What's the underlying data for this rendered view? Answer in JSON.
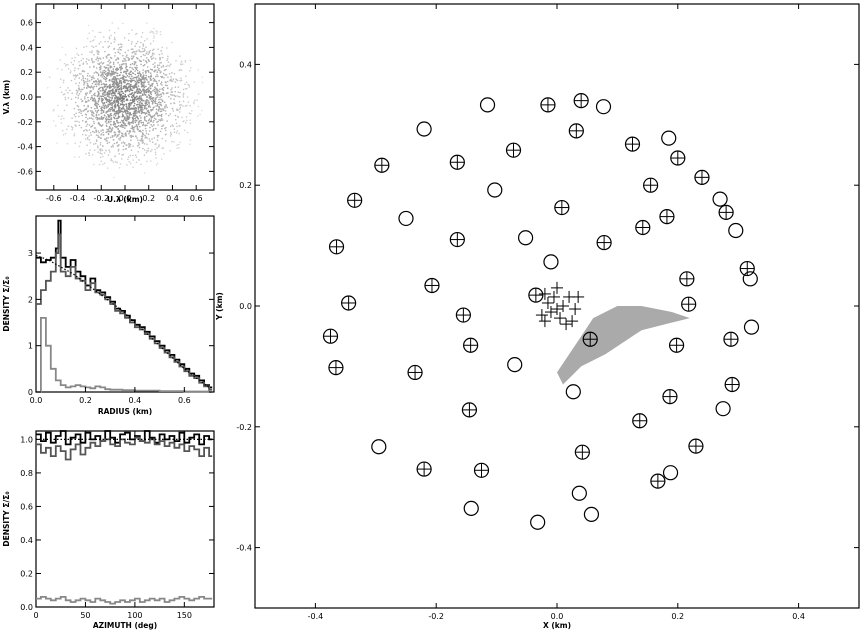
{
  "chart_data": [
    {
      "id": "uv",
      "type": "scatter",
      "xlabel": "U.λ (km)",
      "ylabel": "V.λ (km)",
      "xlim": [
        -0.75,
        0.75
      ],
      "ylim": [
        -0.75,
        0.75
      ],
      "xticks": [
        -0.6,
        -0.4,
        -0.2,
        0.0,
        0.2,
        0.4,
        0.6
      ],
      "yticks": [
        -0.6,
        -0.4,
        -0.2,
        0.0,
        0.2,
        0.4,
        0.6
      ],
      "max_radius": 0.7,
      "colors": {
        "points": "#9a9a9a"
      }
    },
    {
      "id": "radial",
      "type": "line",
      "xlabel": "RADIUS (km)",
      "ylabel": "DENSITY  Σ/Σ₀",
      "xlim": [
        0.0,
        0.72
      ],
      "ylim": [
        0.0,
        3.8
      ],
      "xticks": [
        0.0,
        0.2,
        0.4,
        0.6
      ],
      "yticks": [
        0,
        1,
        2,
        3
      ],
      "series": [
        {
          "style": "step",
          "color": "#000000",
          "x": [
            0.0,
            0.02,
            0.04,
            0.06,
            0.08,
            0.09,
            0.1,
            0.12,
            0.14,
            0.16,
            0.18,
            0.2,
            0.22,
            0.24,
            0.26,
            0.28,
            0.3,
            0.32,
            0.34,
            0.36,
            0.38,
            0.4,
            0.42,
            0.44,
            0.46,
            0.48,
            0.5,
            0.52,
            0.54,
            0.56,
            0.58,
            0.6,
            0.62,
            0.64,
            0.66,
            0.68,
            0.7
          ],
          "y": [
            2.9,
            2.8,
            2.85,
            2.9,
            3.1,
            3.7,
            2.9,
            2.7,
            2.85,
            2.6,
            2.5,
            2.3,
            2.45,
            2.2,
            2.15,
            2.05,
            1.95,
            1.8,
            1.75,
            1.65,
            1.55,
            1.45,
            1.4,
            1.3,
            1.2,
            1.1,
            1.0,
            0.9,
            0.8,
            0.7,
            0.6,
            0.5,
            0.4,
            0.35,
            0.25,
            0.15,
            0.1
          ]
        },
        {
          "style": "step",
          "color": "#555555",
          "x": [
            0.0,
            0.02,
            0.04,
            0.06,
            0.08,
            0.09,
            0.1,
            0.12,
            0.14,
            0.16,
            0.18,
            0.2,
            0.22,
            0.24,
            0.26,
            0.28,
            0.3,
            0.32,
            0.34,
            0.36,
            0.38,
            0.4,
            0.42,
            0.44,
            0.46,
            0.48,
            0.5,
            0.52,
            0.54,
            0.56,
            0.58,
            0.6,
            0.62,
            0.64,
            0.66,
            0.68,
            0.7
          ],
          "y": [
            1.9,
            2.2,
            2.4,
            2.6,
            3.0,
            3.4,
            2.6,
            2.5,
            2.7,
            2.45,
            2.4,
            2.2,
            2.35,
            2.15,
            2.1,
            2.0,
            1.9,
            1.75,
            1.7,
            1.6,
            1.5,
            1.4,
            1.35,
            1.25,
            1.15,
            1.05,
            0.95,
            0.85,
            0.75,
            0.65,
            0.55,
            0.45,
            0.35,
            0.3,
            0.2,
            0.12,
            0.05
          ]
        },
        {
          "style": "step",
          "color": "#888888",
          "x": [
            0.0,
            0.02,
            0.04,
            0.06,
            0.08,
            0.1,
            0.12,
            0.14,
            0.16,
            0.18,
            0.2,
            0.22,
            0.24,
            0.26,
            0.28,
            0.3,
            0.35,
            0.4,
            0.45,
            0.5,
            0.55,
            0.6,
            0.65,
            0.7
          ],
          "y": [
            0.0,
            1.6,
            1.0,
            0.5,
            0.25,
            0.15,
            0.1,
            0.12,
            0.15,
            0.12,
            0.1,
            0.08,
            0.12,
            0.1,
            0.06,
            0.05,
            0.04,
            0.03,
            0.03,
            0.02,
            0.02,
            0.01,
            0.01,
            0.0
          ]
        },
        {
          "style": "dotted",
          "color": "#000000",
          "x": [
            0.0,
            0.05,
            0.1,
            0.15,
            0.2,
            0.25,
            0.3,
            0.35,
            0.4,
            0.45,
            0.5,
            0.55,
            0.6,
            0.65,
            0.7
          ],
          "y": [
            2.95,
            2.85,
            2.7,
            2.55,
            2.35,
            2.15,
            1.95,
            1.75,
            1.5,
            1.25,
            1.0,
            0.75,
            0.5,
            0.3,
            0.1
          ]
        }
      ]
    },
    {
      "id": "azimuth",
      "type": "line",
      "xlabel": "AZIMUTH (deg)",
      "ylabel": "DENSITY  Σ/Σ₀",
      "xlim": [
        0,
        180
      ],
      "ylim": [
        0.0,
        1.05
      ],
      "xticks": [
        0,
        50,
        100,
        150
      ],
      "yticks": [
        0.0,
        0.2,
        0.4,
        0.6,
        0.8,
        1.0
      ],
      "series": [
        {
          "style": "step",
          "color": "#000000",
          "x": [
            0,
            5,
            10,
            15,
            20,
            25,
            30,
            35,
            40,
            45,
            50,
            55,
            60,
            65,
            70,
            75,
            80,
            85,
            90,
            95,
            100,
            105,
            110,
            115,
            120,
            125,
            130,
            135,
            140,
            145,
            150,
            155,
            160,
            165,
            170,
            175
          ],
          "y": [
            1.03,
            0.99,
            1.04,
            0.98,
            1.02,
            1.05,
            0.97,
            1.01,
            1.03,
            0.98,
            1.04,
            1.0,
            1.02,
            0.99,
            1.05,
            1.01,
            0.98,
            1.03,
            1.04,
            1.0,
            1.02,
            0.99,
            1.05,
            1.01,
            0.98,
            1.03,
            1.0,
            1.02,
            0.99,
            1.04,
            0.98,
            1.01,
            1.03,
            0.97,
            1.02,
            1.0
          ]
        },
        {
          "style": "step",
          "color": "#555555",
          "x": [
            0,
            5,
            10,
            15,
            20,
            25,
            30,
            35,
            40,
            45,
            50,
            55,
            60,
            65,
            70,
            75,
            80,
            85,
            90,
            95,
            100,
            105,
            110,
            115,
            120,
            125,
            130,
            135,
            140,
            145,
            150,
            155,
            160,
            165,
            170,
            175
          ],
          "y": [
            0.97,
            0.92,
            0.95,
            0.9,
            0.96,
            0.93,
            0.88,
            0.94,
            0.97,
            0.91,
            0.95,
            0.98,
            0.96,
            0.99,
            1.0,
            0.97,
            0.96,
            1.0,
            0.98,
            0.97,
            1.01,
            0.99,
            0.98,
            1.0,
            0.97,
            0.99,
            0.96,
            0.98,
            0.95,
            0.97,
            0.93,
            0.96,
            0.94,
            0.9,
            0.95,
            0.9
          ]
        },
        {
          "style": "step",
          "color": "#888888",
          "x": [
            0,
            5,
            10,
            15,
            20,
            25,
            30,
            35,
            40,
            45,
            50,
            55,
            60,
            65,
            70,
            75,
            80,
            85,
            90,
            95,
            100,
            105,
            110,
            115,
            120,
            125,
            130,
            135,
            140,
            145,
            150,
            155,
            160,
            165,
            170,
            175
          ],
          "y": [
            0.05,
            0.06,
            0.05,
            0.04,
            0.05,
            0.06,
            0.04,
            0.03,
            0.04,
            0.05,
            0.04,
            0.03,
            0.05,
            0.04,
            0.03,
            0.02,
            0.03,
            0.04,
            0.03,
            0.04,
            0.05,
            0.03,
            0.04,
            0.05,
            0.04,
            0.05,
            0.03,
            0.04,
            0.05,
            0.06,
            0.05,
            0.04,
            0.05,
            0.06,
            0.05,
            0.05
          ]
        },
        {
          "style": "dotted",
          "color": "#000000",
          "x": [
            0,
            180
          ],
          "y": [
            1.0,
            1.0
          ]
        }
      ]
    },
    {
      "id": "layout",
      "type": "scatter",
      "xlabel": "X (km)",
      "ylabel": "Y (km)",
      "xlim": [
        -0.5,
        0.5
      ],
      "ylim": [
        -0.5,
        0.5
      ],
      "xticks": [
        -0.4,
        -0.2,
        0.0,
        0.2,
        0.4
      ],
      "yticks": [
        -0.4,
        -0.2,
        0.0,
        0.2,
        0.4
      ],
      "antennas_circle": [
        [
          -0.115,
          0.333
        ],
        [
          -0.22,
          0.293
        ],
        [
          -0.103,
          0.192
        ],
        [
          -0.25,
          0.145
        ],
        [
          -0.052,
          0.113
        ],
        [
          -0.01,
          0.073
        ],
        [
          0.077,
          0.33
        ],
        [
          0.185,
          0.278
        ],
        [
          0.27,
          0.177
        ],
        [
          0.296,
          0.125
        ],
        [
          0.32,
          0.045
        ],
        [
          0.322,
          -0.035
        ],
        [
          0.275,
          -0.17
        ],
        [
          0.188,
          -0.276
        ],
        [
          0.057,
          -0.345
        ],
        [
          -0.032,
          -0.358
        ],
        [
          -0.142,
          -0.335
        ],
        [
          -0.295,
          -0.233
        ],
        [
          0.037,
          -0.31
        ],
        [
          0.027,
          -0.142
        ],
        [
          -0.07,
          -0.097
        ]
      ],
      "antennas_plus": [
        [
          -0.015,
          0.333
        ],
        [
          0.04,
          0.34
        ],
        [
          0.032,
          0.29
        ],
        [
          0.125,
          0.268
        ],
        [
          0.2,
          0.245
        ],
        [
          0.24,
          0.213
        ],
        [
          0.155,
          0.2
        ],
        [
          0.182,
          0.148
        ],
        [
          0.28,
          0.155
        ],
        [
          0.142,
          0.13
        ],
        [
          0.008,
          0.163
        ],
        [
          0.078,
          0.105
        ],
        [
          0.215,
          0.045
        ],
        [
          0.315,
          0.062
        ],
        [
          0.218,
          0.003
        ],
        [
          0.198,
          -0.065
        ],
        [
          0.288,
          -0.055
        ],
        [
          0.055,
          -0.055
        ],
        [
          -0.165,
          0.238
        ],
        [
          -0.072,
          0.258
        ],
        [
          -0.29,
          0.233
        ],
        [
          -0.335,
          0.175
        ],
        [
          -0.365,
          0.098
        ],
        [
          -0.165,
          0.11
        ],
        [
          -0.345,
          0.005
        ],
        [
          -0.207,
          0.034
        ],
        [
          -0.155,
          -0.015
        ],
        [
          -0.035,
          0.018
        ],
        [
          -0.375,
          -0.05
        ],
        [
          -0.366,
          -0.102
        ],
        [
          -0.235,
          -0.11
        ],
        [
          -0.143,
          -0.065
        ],
        [
          -0.145,
          -0.172
        ],
        [
          0.29,
          -0.13
        ],
        [
          0.187,
          -0.15
        ],
        [
          0.137,
          -0.19
        ],
        [
          0.23,
          -0.232
        ],
        [
          0.167,
          -0.29
        ],
        [
          -0.22,
          -0.27
        ],
        [
          -0.125,
          -0.272
        ],
        [
          0.042,
          -0.242
        ]
      ],
      "crosses": [
        [
          -0.02,
          0.02
        ],
        [
          0.0,
          0.03
        ],
        [
          0.01,
          0.0
        ],
        [
          -0.01,
          -0.01
        ],
        [
          0.02,
          0.015
        ],
        [
          0.03,
          -0.005
        ],
        [
          -0.025,
          -0.015
        ],
        [
          0.005,
          -0.02
        ],
        [
          0.015,
          -0.03
        ],
        [
          -0.005,
          0.015
        ],
        [
          0.025,
          -0.025
        ],
        [
          -0.015,
          0.005
        ],
        [
          0.035,
          0.015
        ],
        [
          0.0,
          -0.005
        ],
        [
          -0.02,
          -0.025
        ]
      ],
      "colors": {
        "shaded": "#aaaaaa"
      }
    }
  ]
}
